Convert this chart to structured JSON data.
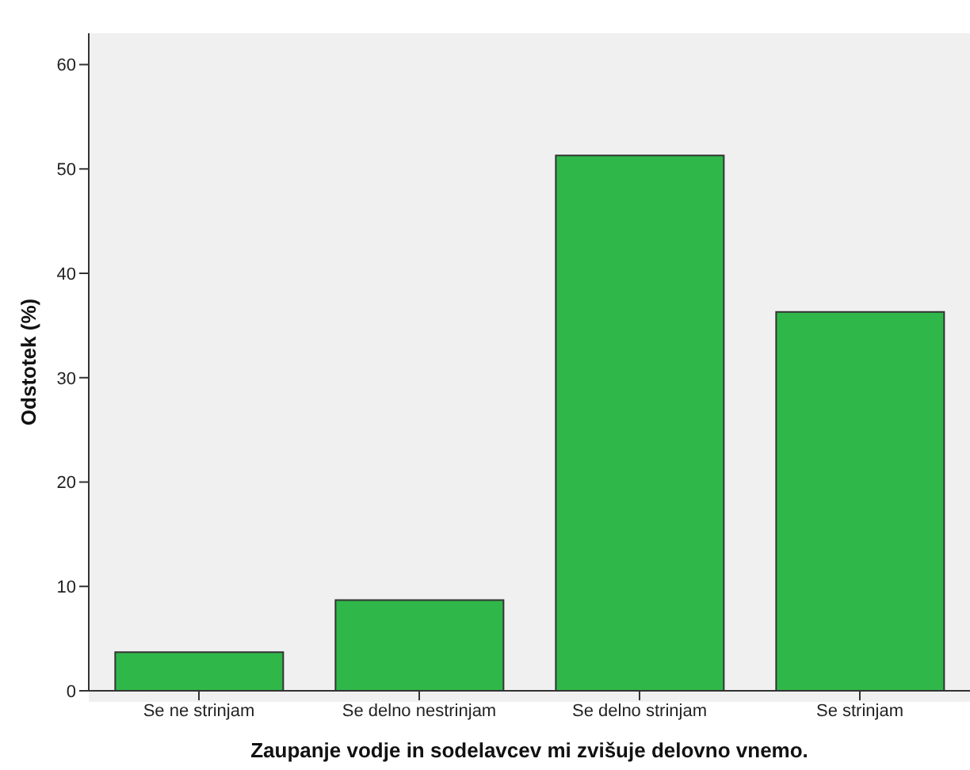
{
  "chart_data": {
    "type": "bar",
    "xlabel": "Zaupanje vodje in sodelavcev mi zvišuje delovno vnemo.",
    "ylabel": "Odstotek (%)",
    "categories": [
      "Se ne strinjam",
      "Se delno nestrinjam",
      "Se delno strinjam",
      "Se strinjam"
    ],
    "values": [
      3.7,
      8.7,
      51.3,
      36.3
    ],
    "color": "#30b74a",
    "ylim": [
      0,
      63
    ],
    "yticks": [
      0,
      10,
      20,
      30,
      40,
      50,
      60
    ],
    "grid": false,
    "legend": false
  }
}
